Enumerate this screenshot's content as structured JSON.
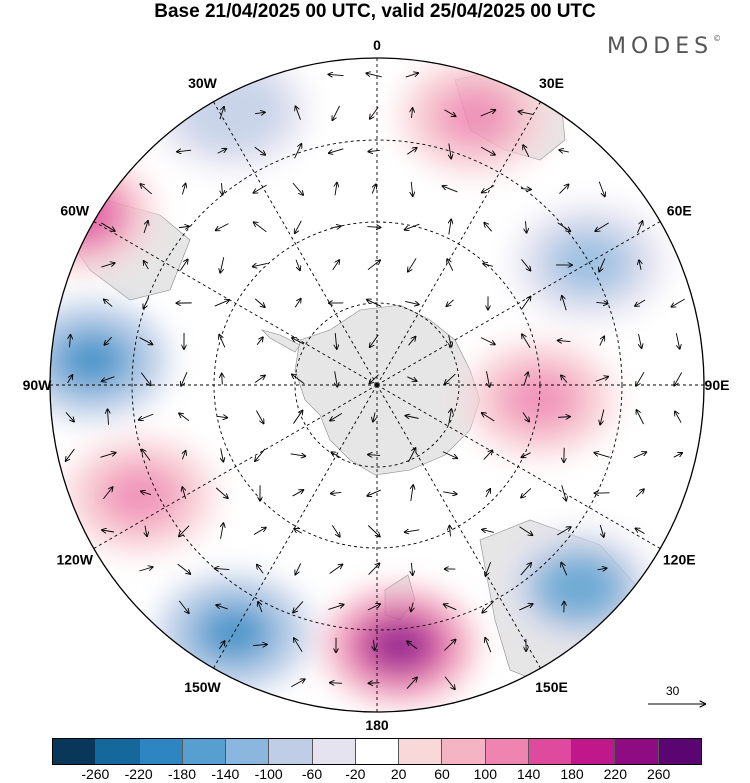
{
  "title": "Base 21/04/2025 00 UTC, valid 25/04/2025 00 UTC",
  "logo": "MODES",
  "logo_mark": "©",
  "longitude_labels": [
    "0",
    "30E",
    "60E",
    "90E",
    "120E",
    "150E",
    "180",
    "150W",
    "120W",
    "90W",
    "60W",
    "30W"
  ],
  "reference_vector": {
    "value": "30"
  },
  "colorbar": {
    "colors": [
      "#08375a",
      "#15689c",
      "#2d86c2",
      "#579fd0",
      "#8bb7de",
      "#c0cde6",
      "#e6e3f0",
      "#ffffff",
      "#f9d8da",
      "#f5b4c4",
      "#ef84b0",
      "#e04a9e",
      "#c0188a",
      "#8e0b82",
      "#5a0572"
    ],
    "tick_labels": [
      "-260",
      "-220",
      "-180",
      "-140",
      "-100",
      "-60",
      "-20",
      "20",
      "60",
      "100",
      "140",
      "180",
      "220",
      "260"
    ]
  },
  "anomaly_cells": [
    {
      "lon": 20,
      "lat": -55,
      "val": 100
    },
    {
      "lon": 60,
      "lat": -60,
      "val": -140
    },
    {
      "lon": 95,
      "lat": -70,
      "val": 120
    },
    {
      "lon": 135,
      "lat": -55,
      "val": -160
    },
    {
      "lon": 175,
      "lat": -58,
      "val": 230
    },
    {
      "lon": -150,
      "lat": -55,
      "val": -200
    },
    {
      "lon": -115,
      "lat": -58,
      "val": 100
    },
    {
      "lon": -85,
      "lat": -55,
      "val": -200
    },
    {
      "lon": -60,
      "lat": -48,
      "val": 160
    },
    {
      "lon": -28,
      "lat": -52,
      "val": -100
    }
  ]
}
